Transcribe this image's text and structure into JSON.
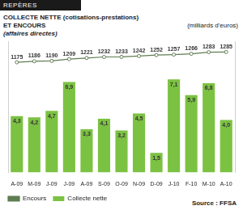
{
  "header": "REPÈRES",
  "chart_data": {
    "type": "bar",
    "title": [
      "COLLECTE NETTE (cotisations-prestations)",
      "ET ENCOURS"
    ],
    "subtitle": "(affaires directes)",
    "annotations": [
      "(milliards d'euros)",
      "Source : FFSA"
    ],
    "categories": [
      "A-09",
      "M-09",
      "J-09",
      "J-09",
      "A-09",
      "S-09",
      "O-09",
      "N-09",
      "D-09",
      "J-10",
      "F-10",
      "M-10",
      "A-10"
    ],
    "series": [
      {
        "name": "Collecte nette",
        "type": "bar",
        "color": "#7cc242",
        "values": [
          4.3,
          4.2,
          4.7,
          6.9,
          3.3,
          4.1,
          3.2,
          4.5,
          1.5,
          7.1,
          5.9,
          6.8,
          4.0
        ],
        "value_labels": [
          "4,3",
          "4,2",
          "4,7",
          "6,9",
          "3,3",
          "4,1",
          "3,2",
          "4,5",
          "1,5",
          "7,1",
          "5,9",
          "6,8",
          "4,0"
        ]
      },
      {
        "name": "Encours",
        "type": "line",
        "color": "#5f7d52",
        "axis": "y2",
        "marker": "circle",
        "values": [
          1175,
          1186,
          1190,
          1209,
          1221,
          1232,
          1233,
          1242,
          1252,
          1257,
          1266,
          1283,
          1285
        ]
      }
    ],
    "ylim": [
      0,
      10
    ],
    "y2lim": [
      0,
      1400
    ],
    "grid": false,
    "legend": "bottom",
    "data_labels": true,
    "tick_labels": "x"
  }
}
